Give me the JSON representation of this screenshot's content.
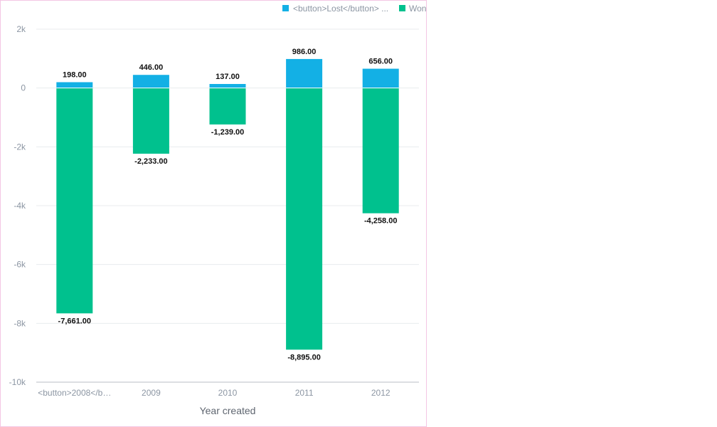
{
  "chart_data": {
    "type": "bar",
    "stacked": true,
    "xlabel": "Year created",
    "ylabel": "",
    "categories": [
      "<button>2008</button>",
      "2009",
      "2010",
      "2011",
      "2012"
    ],
    "category_display": [
      "<button>2008</b…",
      "2009",
      "2010",
      "2011",
      "2012"
    ],
    "ylim": [
      -10000,
      2000
    ],
    "yticks": [
      2000,
      0,
      -2000,
      -4000,
      -6000,
      -8000,
      -10000
    ],
    "ytick_labels": [
      "2k",
      "0",
      "-2k",
      "-4k",
      "-6k",
      "-8k",
      "-10k"
    ],
    "grid": true,
    "legend_position": "top-right",
    "series": [
      {
        "name": "<button>Lost</button>",
        "legend_label": "<button>Lost</button> ...",
        "color": "#13b0e5",
        "values": [
          198,
          446,
          137,
          986,
          656
        ],
        "value_labels": [
          "198.00",
          "446.00",
          "137.00",
          "986.00",
          "656.00"
        ]
      },
      {
        "name": "Won",
        "legend_label": "Won",
        "color": "#00c18e",
        "values": [
          -7661,
          -2233,
          -1239,
          -8895,
          -4258
        ],
        "value_labels": [
          "-7,661.00",
          "-2,233.00",
          "-1,239.00",
          "-8,895.00",
          "-4,258.00"
        ]
      }
    ]
  }
}
